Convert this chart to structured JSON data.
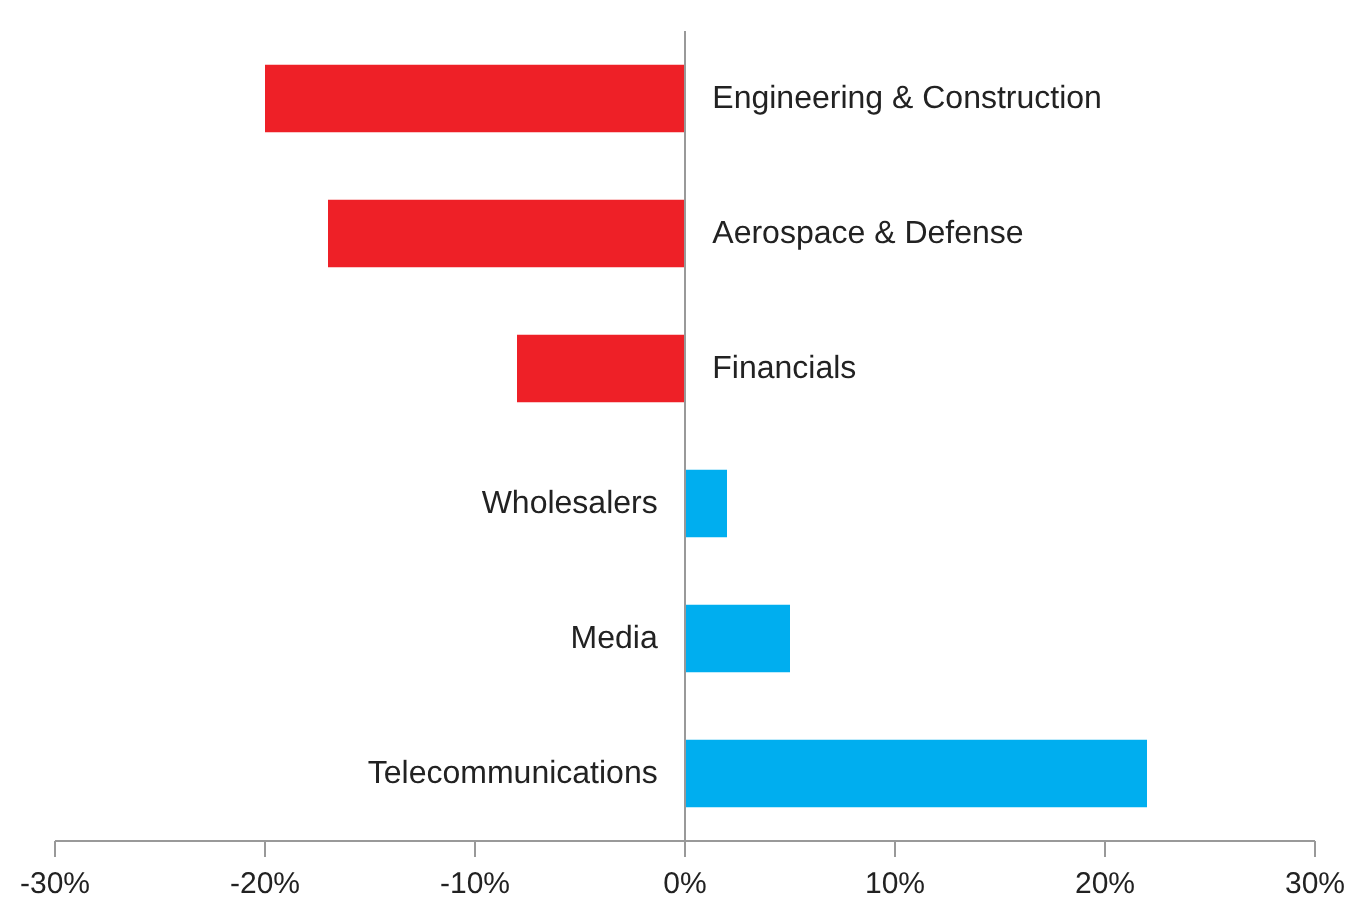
{
  "chart_data": {
    "type": "bar",
    "orientation": "horizontal",
    "categories": [
      "Engineering & Construction",
      "Aerospace & Defense",
      "Financials",
      "Wholesalers",
      "Media",
      "Telecommunications"
    ],
    "values": [
      -20,
      -17,
      -8,
      2,
      5,
      22
    ],
    "colors": [
      "#ee2027",
      "#ee2027",
      "#ee2027",
      "#00aeef",
      "#00aeef",
      "#00aeef"
    ],
    "xlim": [
      -30,
      30
    ],
    "xticks": [
      {
        "value": -30,
        "label": "-30%"
      },
      {
        "value": -20,
        "label": "-20%"
      },
      {
        "value": -10,
        "label": "-10%"
      },
      {
        "value": 0,
        "label": "0%"
      },
      {
        "value": 10,
        "label": "10%"
      },
      {
        "value": 20,
        "label": "20%"
      },
      {
        "value": 30,
        "label": "30%"
      }
    ],
    "grid": false
  }
}
